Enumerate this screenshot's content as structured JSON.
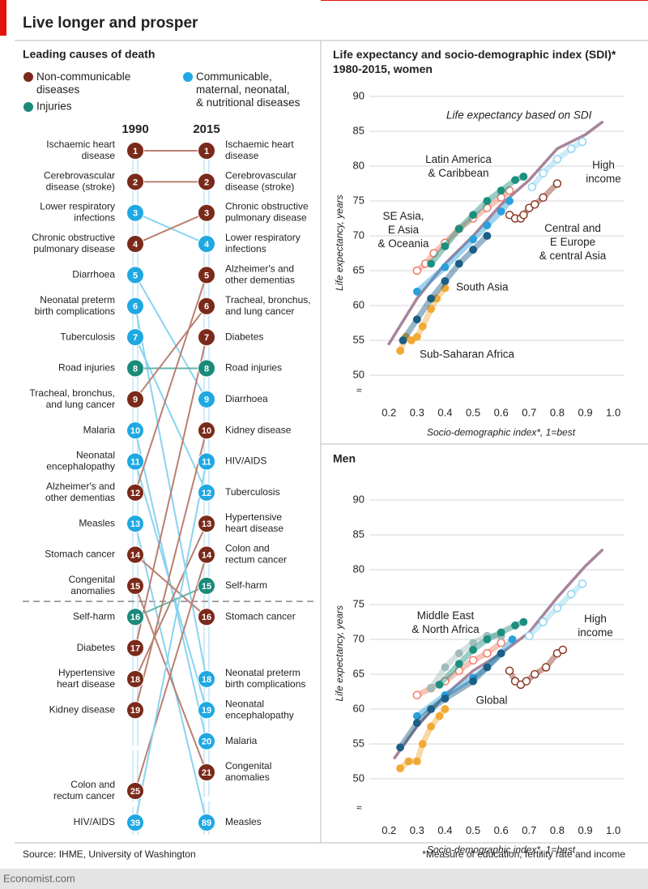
{
  "header": {
    "title": "Live longer and prosper"
  },
  "chart_data": [
    {
      "type": "slope",
      "title": "Leading causes of death",
      "columns": [
        "1990",
        "2015"
      ],
      "groups": [
        {
          "name": "Non-communicable\ndiseases",
          "color": "#7a2a1a",
          "line_color": "#b98070"
        },
        {
          "name": "Injuries",
          "color": "#1b8a7a",
          "line_color": "#64b3a7"
        },
        {
          "name": "Communicable,\nmaternal, neonatal,\n& nutritional diseases",
          "color": "#1fa8e2",
          "line_color": "#8ad3f0"
        }
      ],
      "causes": [
        {
          "name": "Ischaemic heart\ndisease",
          "group": 0,
          "ranks": [
            1,
            1
          ]
        },
        {
          "name": "Cerebrovascular\ndisease (stroke)",
          "group": 0,
          "ranks": [
            2,
            2
          ]
        },
        {
          "name": "Lower respiratory\ninfections",
          "group": 2,
          "ranks": [
            3,
            4
          ]
        },
        {
          "name": "Chronic obstructive\npulmonary disease",
          "group": 0,
          "ranks": [
            4,
            3
          ]
        },
        {
          "name": "Diarrhoea",
          "group": 2,
          "ranks": [
            5,
            9
          ]
        },
        {
          "name": "Neonatal preterm\nbirth complications",
          "group": 2,
          "ranks": [
            6,
            18
          ]
        },
        {
          "name": "Tuberculosis",
          "group": 2,
          "ranks": [
            7,
            12
          ]
        },
        {
          "name": "Road injuries",
          "group": 1,
          "ranks": [
            8,
            8
          ]
        },
        {
          "name": "Tracheal, bronchus,\nand lung cancer",
          "group": 0,
          "ranks": [
            9,
            6
          ]
        },
        {
          "name": "Malaria",
          "group": 2,
          "ranks": [
            10,
            20
          ]
        },
        {
          "name": "Neonatal\nencephalopathy",
          "group": 2,
          "ranks": [
            11,
            19
          ]
        },
        {
          "name": "Alzheimer's and\nother dementias",
          "group": 0,
          "ranks": [
            12,
            5
          ]
        },
        {
          "name": "Measles",
          "group": 2,
          "ranks": [
            13,
            89
          ]
        },
        {
          "name": "Stomach cancer",
          "group": 0,
          "ranks": [
            14,
            16
          ]
        },
        {
          "name": "Congenital\nanomalies",
          "group": 0,
          "ranks": [
            15,
            21
          ]
        },
        {
          "name": "Self-harm",
          "group": 1,
          "ranks": [
            16,
            15
          ]
        },
        {
          "name": "Diabetes",
          "group": 0,
          "ranks": [
            17,
            7
          ]
        },
        {
          "name": "Hypertensive\nheart disease",
          "group": 0,
          "ranks": [
            18,
            13
          ]
        },
        {
          "name": "Kidney disease",
          "group": 0,
          "ranks": [
            19,
            10
          ]
        },
        {
          "name": "Colon and\nrectum cancer",
          "group": 0,
          "ranks": [
            25,
            14
          ]
        },
        {
          "name": "HIV/AIDS",
          "group": 2,
          "ranks": [
            39,
            11
          ]
        }
      ]
    },
    {
      "type": "scatter",
      "title": "Life expectancy and socio-demographic index (SDI)*\n1980-2015, women",
      "xlabel": "Socio-demographic index*, 1=best",
      "ylabel": "Life expectancy, years",
      "xlim": [
        0.13,
        1.04
      ],
      "ylim": [
        48,
        90
      ],
      "xticks": [
        0.2,
        0.3,
        0.4,
        0.5,
        0.6,
        0.7,
        0.8,
        0.9,
        {
          "value": 1,
          "label": "1.0"
        }
      ],
      "yticks": [
        50,
        55,
        60,
        65,
        70,
        75,
        80,
        85,
        90
      ],
      "grid": true,
      "series": [
        {
          "name": "Life expectancy based on SDI",
          "color": "#a7849a",
          "style": "line",
          "x": [
            0.2,
            0.3,
            0.4,
            0.5,
            0.6,
            0.7,
            0.8,
            0.9,
            0.96
          ],
          "values": [
            54.5,
            61,
            66,
            70,
            74.5,
            78,
            82.5,
            84.5,
            86.3
          ]
        },
        {
          "name": "Sub-Saharan Africa",
          "color": "#f2a933",
          "x": [
            0.24,
            0.26,
            0.28,
            0.3,
            0.32,
            0.35,
            0.37,
            0.4
          ],
          "values": [
            53.5,
            55.5,
            55,
            55.5,
            57,
            59.5,
            61,
            62.5
          ]
        },
        {
          "color": "#2aa0dc",
          "x": [
            0.3,
            0.4,
            0.5,
            0.55,
            0.6,
            0.63
          ],
          "values": [
            62,
            65.5,
            69.5,
            71.5,
            73.5,
            75
          ]
        },
        {
          "name": "South Asia",
          "color": "#1b5e86",
          "x": [
            0.25,
            0.3,
            0.35,
            0.4,
            0.45,
            0.5,
            0.55
          ],
          "values": [
            55,
            58,
            61,
            63.5,
            66,
            68,
            70
          ]
        },
        {
          "name": "SE Asia,\nE Asia\n& Oceania",
          "color": "#ef7a63",
          "marker": "hollow",
          "x": [
            0.3,
            0.33,
            0.36,
            0.4,
            0.45,
            0.5,
            0.55,
            0.6,
            0.63
          ],
          "values": [
            65,
            66,
            67.5,
            69,
            71,
            72.5,
            74,
            75.5,
            76.5
          ]
        },
        {
          "name": "Latin America\n& Caribbean",
          "color": "#1d8f7e",
          "x": [
            0.35,
            0.4,
            0.45,
            0.5,
            0.55,
            0.6,
            0.65,
            0.68
          ],
          "values": [
            66,
            68.5,
            71,
            73,
            75,
            76.5,
            78,
            78.5
          ]
        },
        {
          "name": "Central and\nE Europe\n& central Asia",
          "color": "#8c3a26",
          "marker": "hollow",
          "x": [
            0.63,
            0.65,
            0.67,
            0.68,
            0.7,
            0.72,
            0.75,
            0.8
          ],
          "values": [
            73,
            72.5,
            72.5,
            73,
            74,
            74.5,
            75.5,
            77.5
          ]
        },
        {
          "name": "High\nincome",
          "color": "#8fd4f0",
          "marker": "hollow",
          "x": [
            0.71,
            0.75,
            0.8,
            0.85,
            0.89
          ],
          "values": [
            77,
            79,
            81,
            82.5,
            83.5
          ]
        }
      ]
    },
    {
      "type": "scatter",
      "title": "Men",
      "xlabel": "Socio-demographic index*, 1=best",
      "ylabel": "Life expectancy, years",
      "xlim": [
        0.13,
        1.04
      ],
      "ylim": [
        46,
        90
      ],
      "xticks": [
        0.2,
        0.3,
        0.4,
        0.5,
        0.6,
        0.7,
        0.8,
        0.9,
        {
          "value": 1,
          "label": "1.0"
        }
      ],
      "yticks": [
        50,
        55,
        60,
        65,
        70,
        75,
        80,
        85,
        90
      ],
      "grid": true,
      "series": [
        {
          "color": "#a7849a",
          "style": "line",
          "x": [
            0.22,
            0.3,
            0.4,
            0.5,
            0.6,
            0.7,
            0.8,
            0.9,
            0.96
          ],
          "values": [
            53,
            57.5,
            62,
            65.5,
            68,
            71,
            76,
            80.5,
            82.8
          ]
        },
        {
          "color": "#f2a933",
          "x": [
            0.24,
            0.27,
            0.3,
            0.32,
            0.35,
            0.38,
            0.4
          ],
          "values": [
            51.5,
            52.5,
            52.5,
            55,
            57.5,
            59,
            60
          ]
        },
        {
          "name": "Global",
          "color": "#2aa0dc",
          "x": [
            0.3,
            0.4,
            0.5,
            0.55,
            0.6,
            0.64
          ],
          "values": [
            59,
            62,
            64.5,
            66,
            68,
            70
          ]
        },
        {
          "color": "#1b5e86",
          "x": [
            0.24,
            0.3,
            0.35,
            0.4,
            0.5,
            0.55,
            0.6
          ],
          "values": [
            54.5,
            58,
            60,
            61.5,
            64,
            66,
            68
          ]
        },
        {
          "color": "#ef7a63",
          "marker": "hollow",
          "x": [
            0.3,
            0.35,
            0.4,
            0.45,
            0.5,
            0.55,
            0.6
          ],
          "values": [
            62,
            63,
            64,
            65.5,
            67,
            68,
            69.5
          ]
        },
        {
          "name": "Middle East\n& North Africa",
          "color": "#9fbcbc",
          "x": [
            0.35,
            0.4,
            0.45,
            0.5,
            0.55,
            0.6
          ],
          "values": [
            63,
            66,
            68,
            69.5,
            70.5,
            70.5
          ]
        },
        {
          "color": "#1d8f7e",
          "x": [
            0.38,
            0.45,
            0.5,
            0.55,
            0.6,
            0.65,
            0.68
          ],
          "values": [
            63.5,
            66.5,
            68.5,
            70,
            71,
            72,
            72.5
          ]
        },
        {
          "color": "#8c3a26",
          "marker": "hollow",
          "x": [
            0.63,
            0.65,
            0.67,
            0.69,
            0.72,
            0.76,
            0.8,
            0.82
          ],
          "values": [
            65.5,
            64,
            63.5,
            64,
            65,
            66,
            68,
            68.5
          ]
        },
        {
          "name": "High\nincome",
          "color": "#8fd4f0",
          "marker": "hollow",
          "x": [
            0.7,
            0.75,
            0.8,
            0.85,
            0.89
          ],
          "values": [
            70.5,
            72.5,
            74.5,
            76.5,
            78
          ]
        }
      ]
    }
  ],
  "footer": {
    "source": "Source: IHME, University of Washington",
    "note": "*Measure of education, fertility rate and income",
    "brand": "Economist.com"
  }
}
